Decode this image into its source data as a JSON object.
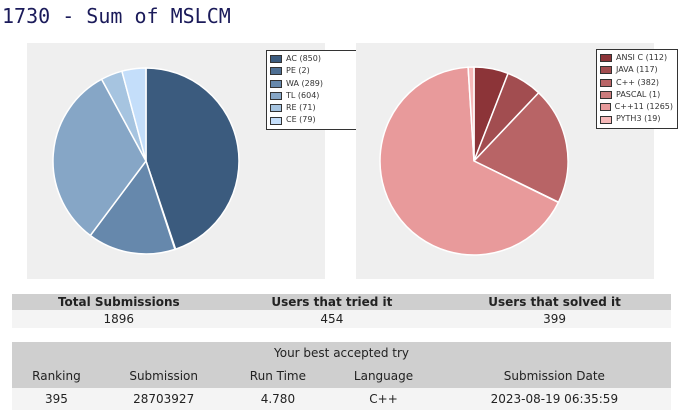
{
  "page_title": "1730 - Sum of MSLCM",
  "verdict_chart": {
    "slices": [
      {
        "label": "AC (850)",
        "value": 850,
        "color": "#3b5b7e"
      },
      {
        "label": "PE (2)",
        "value": 2,
        "color": "#4e6f93"
      },
      {
        "label": "WA (289)",
        "value": 289,
        "color": "#6688ac"
      },
      {
        "label": "TL (604)",
        "value": 604,
        "color": "#86a6c6"
      },
      {
        "label": "RE (71)",
        "value": 71,
        "color": "#a6c4e0"
      },
      {
        "label": "CE (79)",
        "value": 79,
        "color": "#c4defa"
      }
    ]
  },
  "language_chart": {
    "slices": [
      {
        "label": "ANSI C (112)",
        "value": 112,
        "color": "#8c3438"
      },
      {
        "label": "JAVA (117)",
        "value": 117,
        "color": "#a24d50"
      },
      {
        "label": "C++ (382)",
        "value": 382,
        "color": "#b86466"
      },
      {
        "label": "PASCAL (1)",
        "value": 1,
        "color": "#cb7c7d"
      },
      {
        "label": "C++11 (1265)",
        "value": 1265,
        "color": "#e89a9b"
      },
      {
        "label": "PYTH3 (19)",
        "value": 19,
        "color": "#f6b8b8"
      }
    ]
  },
  "summary": {
    "headers": [
      "Total Submissions",
      "Users that tried it",
      "Users that solved it"
    ],
    "values": [
      "1896",
      "454",
      "399"
    ]
  },
  "best_try": {
    "caption": "Your best accepted try",
    "headers": [
      "Ranking",
      "Submission",
      "Run Time",
      "Language",
      "Submission Date"
    ],
    "values": [
      "395",
      "28703927",
      "4.780",
      "C++",
      "2023-08-19 06:35:59"
    ]
  }
}
